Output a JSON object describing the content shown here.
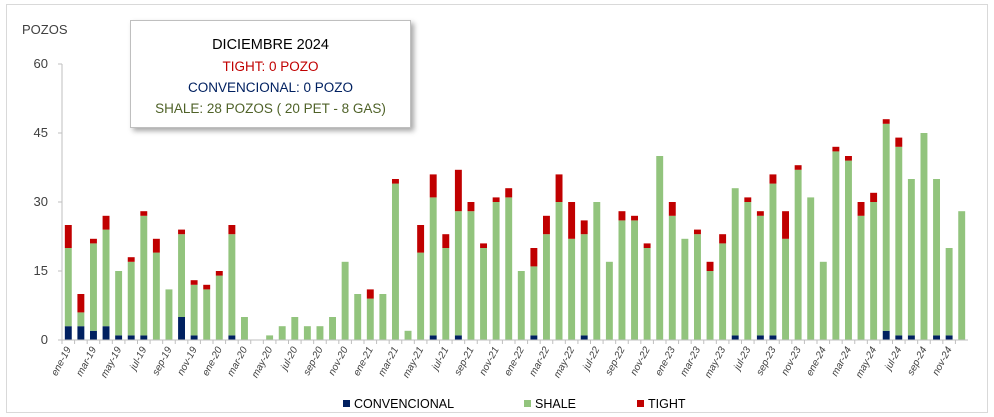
{
  "chart_data": {
    "type": "bar",
    "stacked": true,
    "ylabel": "POZOS",
    "ylim": [
      0,
      60
    ],
    "yticks": [
      0,
      15,
      30,
      45,
      60
    ],
    "grid": false,
    "legend_position": "bottom",
    "categories": [
      "ene-19",
      "feb-19",
      "mar-19",
      "abr-19",
      "may-19",
      "jun-19",
      "jul-19",
      "ago-19",
      "sep-19",
      "oct-19",
      "nov-19",
      "dic-19",
      "ene-20",
      "feb-20",
      "mar-20",
      "abr-20",
      "may-20",
      "jun-20",
      "jul-20",
      "ago-20",
      "sep-20",
      "oct-20",
      "nov-20",
      "dic-20",
      "ene-21",
      "feb-21",
      "mar-21",
      "abr-21",
      "may-21",
      "jun-21",
      "jul-21",
      "ago-21",
      "sep-21",
      "oct-21",
      "nov-21",
      "dic-21",
      "ene-22",
      "feb-22",
      "mar-22",
      "abr-22",
      "may-22",
      "jun-22",
      "jul-22",
      "ago-22",
      "sep-22",
      "oct-22",
      "nov-22",
      "dic-22",
      "ene-23",
      "feb-23",
      "mar-23",
      "abr-23",
      "may-23",
      "jun-23",
      "jul-23",
      "ago-23",
      "sep-23",
      "oct-23",
      "nov-23",
      "dic-23",
      "ene-24",
      "feb-24",
      "mar-24",
      "abr-24",
      "may-24",
      "jun-24",
      "jul-24",
      "ago-24",
      "sep-24",
      "oct-24",
      "nov-24",
      "dic-24"
    ],
    "tick_labels": [
      "ene-19",
      "mar-19",
      "may-19",
      "jul-19",
      "sep-19",
      "nov-19",
      "ene-20",
      "mar-20",
      "may-20",
      "jul-20",
      "sep-20",
      "nov-20",
      "ene-21",
      "mar-21",
      "may-21",
      "jul-21",
      "sep-21",
      "nov-21",
      "ene-22",
      "mar-22",
      "may-22",
      "jul-22",
      "sep-22",
      "nov-22",
      "ene-23",
      "mar-23",
      "may-23",
      "jul-23",
      "sep-23",
      "nov-23",
      "ene-24",
      "mar-24",
      "may-24",
      "jul-24",
      "sep-24",
      "nov-24"
    ],
    "series": [
      {
        "name": "CONVENCIONAL",
        "color": "#002060",
        "values": [
          3,
          3,
          2,
          3,
          1,
          1,
          1,
          0,
          0,
          5,
          1,
          0,
          0,
          1,
          0,
          0,
          0,
          0,
          0,
          0,
          0,
          0,
          0,
          0,
          0,
          0,
          0,
          0,
          0,
          1,
          0,
          1,
          0,
          0,
          0,
          0,
          0,
          1,
          0,
          0,
          0,
          1,
          0,
          0,
          0,
          0,
          0,
          0,
          0,
          0,
          0,
          0,
          0,
          1,
          0,
          1,
          1,
          0,
          0,
          0,
          0,
          0,
          0,
          0,
          0,
          2,
          1,
          1,
          0,
          1,
          1,
          0
        ]
      },
      {
        "name": "SHALE",
        "color": "#92c47d",
        "values": [
          17,
          3,
          19,
          21,
          14,
          16,
          26,
          19,
          11,
          18,
          11,
          11,
          14,
          22,
          5,
          0,
          1,
          3,
          5,
          3,
          3,
          5,
          17,
          10,
          9,
          10,
          34,
          2,
          19,
          30,
          20,
          27,
          28,
          20,
          30,
          31,
          15,
          15,
          23,
          30,
          22,
          22,
          30,
          17,
          26,
          26,
          20,
          40,
          27,
          22,
          23,
          15,
          21,
          32,
          30,
          26,
          33,
          22,
          37,
          31,
          17,
          41,
          39,
          27,
          30,
          45,
          41,
          34,
          45,
          34,
          19,
          28
        ]
      },
      {
        "name": "TIGHT",
        "color": "#c00000",
        "values": [
          5,
          4,
          1,
          3,
          0,
          1,
          1,
          3,
          0,
          1,
          1,
          1,
          1,
          2,
          0,
          0,
          0,
          0,
          0,
          0,
          0,
          0,
          0,
          0,
          2,
          0,
          1,
          0,
          6,
          5,
          3,
          9,
          2,
          1,
          1,
          2,
          0,
          4,
          4,
          6,
          8,
          3,
          0,
          0,
          2,
          1,
          1,
          0,
          3,
          0,
          1,
          2,
          2,
          0,
          1,
          1,
          2,
          6,
          1,
          0,
          0,
          1,
          1,
          3,
          2,
          1,
          2,
          0,
          0,
          0,
          0,
          0
        ]
      }
    ]
  },
  "info_box": {
    "title": "DICIEMBRE 2024",
    "tight": "TIGHT: 0 POZO",
    "convencional": "CONVENCIONAL: 0 POZO",
    "shale": "SHALE: 28 POZOS ( 20 PET - 8 GAS)"
  }
}
